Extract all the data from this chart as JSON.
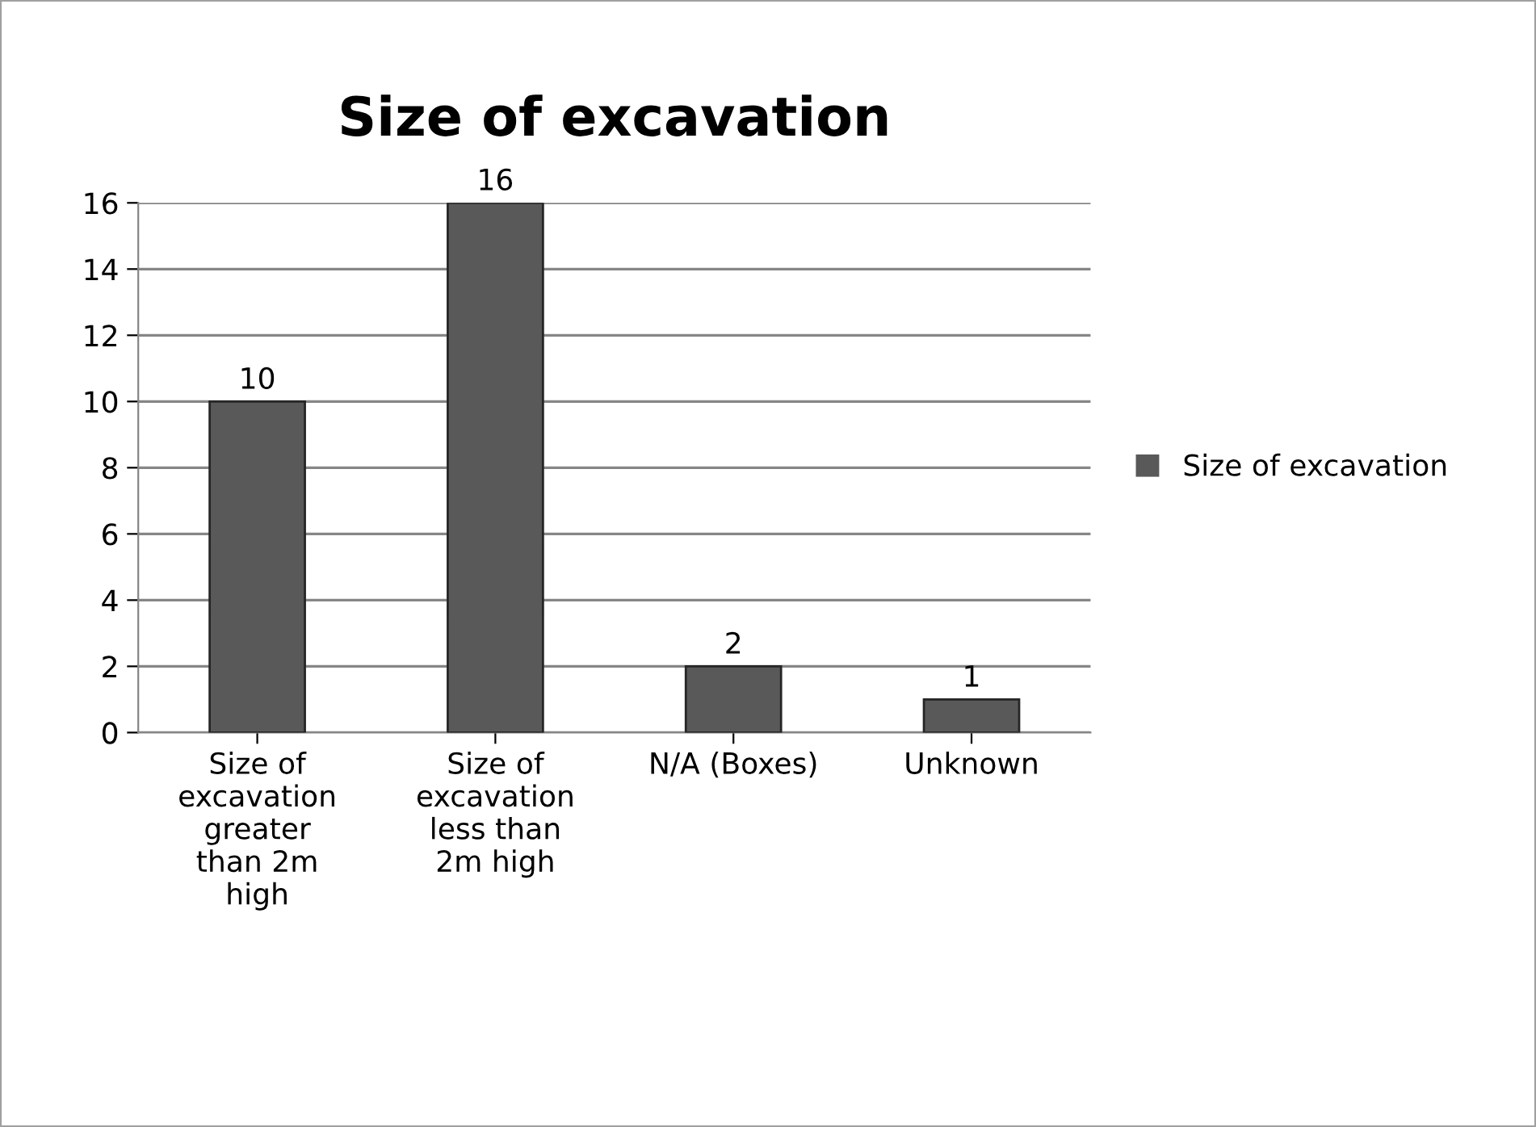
{
  "chart_data": {
    "type": "bar",
    "title": "Size of excavation",
    "categories": [
      "Size of excavation greater than 2m high",
      "Size of excavation less than 2m high",
      "N/A (Boxes)",
      "Unknown"
    ],
    "series": [
      {
        "name": "Size of excavation",
        "color": "#595959",
        "values": [
          10,
          16,
          2,
          1
        ]
      }
    ],
    "ylim": [
      0,
      16
    ],
    "yticks": [
      0,
      2,
      4,
      6,
      8,
      10,
      12,
      14,
      16
    ],
    "grid": "y",
    "legend": "right",
    "data_labels": true
  }
}
